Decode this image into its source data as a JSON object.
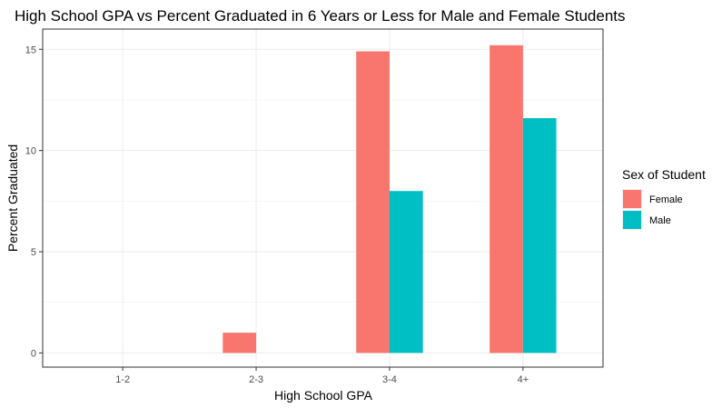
{
  "chart_data": {
    "type": "bar",
    "title": "High School GPA vs Percent Graduated in 6 Years or Less for Male and Female Students",
    "xlabel": "High School GPA",
    "ylabel": "Percent Graduated",
    "categories": [
      "1-2",
      "2-3",
      "3-4",
      "4+"
    ],
    "series": [
      {
        "name": "Female",
        "color": "#F8766D",
        "values": [
          0,
          1.0,
          14.9,
          15.2
        ]
      },
      {
        "name": "Male",
        "color": "#00BFC4",
        "values": [
          0,
          0,
          8.0,
          11.6
        ]
      }
    ],
    "ylim": [
      -0.7,
      16.0
    ],
    "yticks": [
      0,
      5,
      10,
      15
    ],
    "grid": true,
    "legend": {
      "title": "Sex of Student",
      "position": "right"
    }
  }
}
